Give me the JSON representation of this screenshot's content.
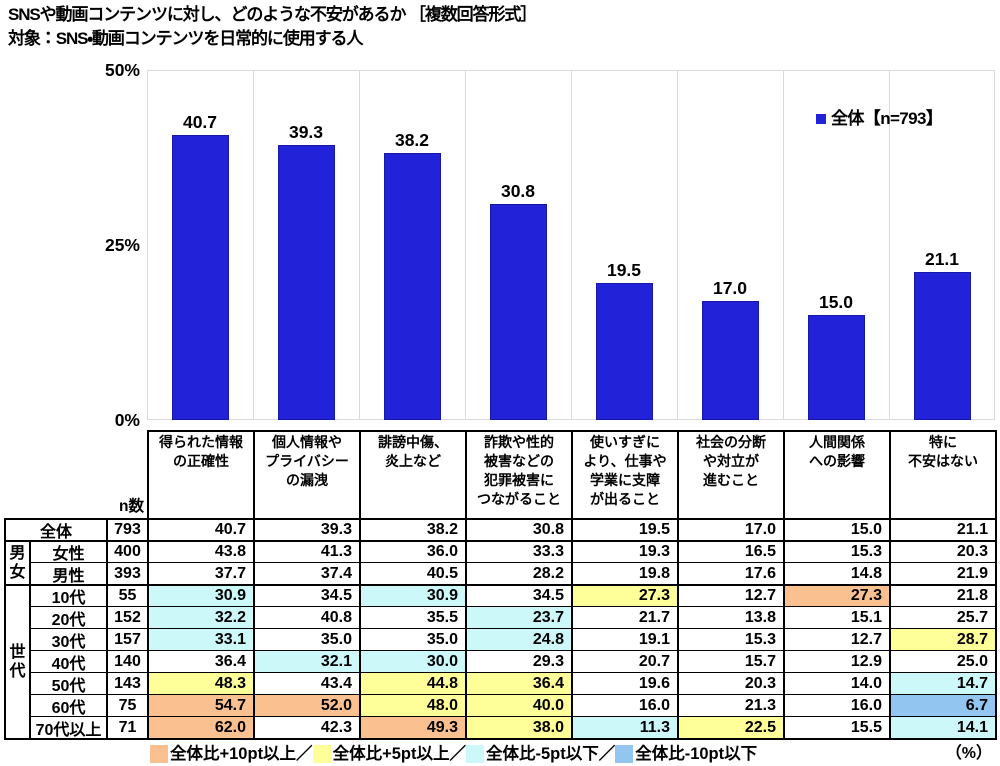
{
  "title": "SNSや動画コンテンツに対し、どのような不安があるか ［複数回答形式］",
  "subtitle": "対象：SNS・動画コンテンツを日常的に使用する人",
  "legend": {
    "label": "全体【n=793】",
    "color": "#2222D8"
  },
  "percent_note": "（%）",
  "n_header": "n数",
  "colors": {
    "bar": "#2222D8",
    "bar_border": "#1818A8",
    "gridline": "#DADADA",
    "highlight": {
      "o": "#FAC090",
      "y": "#FFFF99",
      "c": "#CDF8FA",
      "b": "#92C5F0"
    }
  },
  "chart_data": {
    "type": "bar",
    "title": "SNSや動画コンテンツに対し、どのような不安があるか ［複数回答形式］",
    "subtitle": "対象：SNS・動画コンテンツを日常的に使用する人",
    "legend_entries": [
      "全体【n=793】"
    ],
    "legend_position": "top-right",
    "ylim": [
      0,
      50
    ],
    "yticks": [
      {
        "value": 0,
        "label": "0%"
      },
      {
        "value": 25,
        "label": "25%"
      },
      {
        "value": 50,
        "label": "50%"
      }
    ],
    "grid": "vertical-category-separators",
    "categories": [
      {
        "label_lines": [
          "得られた情報",
          "の正確性"
        ],
        "value": 40.7,
        "display": "40.7"
      },
      {
        "label_lines": [
          "個人情報や",
          "プライバシー",
          "の漏洩"
        ],
        "value": 39.3,
        "display": "39.3"
      },
      {
        "label_lines": [
          "誹謗中傷、",
          "炎上など"
        ],
        "value": 38.2,
        "display": "38.2"
      },
      {
        "label_lines": [
          "詐欺や性的",
          "被害などの",
          "犯罪被害に",
          "つながること"
        ],
        "value": 30.8,
        "display": "30.8"
      },
      {
        "label_lines": [
          "使いすぎに",
          "より、仕事や",
          "学業に支障",
          "が出ること"
        ],
        "value": 19.5,
        "display": "19.5"
      },
      {
        "label_lines": [
          "社会の分断",
          "や対立が",
          "進むこと"
        ],
        "value": 17.0,
        "display": "17.0"
      },
      {
        "label_lines": [
          "人間関係",
          "への影響"
        ],
        "value": 15.0,
        "display": "15.0"
      },
      {
        "label_lines": [
          "特に",
          "不安はない"
        ],
        "value": 21.1,
        "display": "21.1"
      }
    ]
  },
  "table": {
    "groups": [
      {
        "label": "男女",
        "start": 1,
        "span": 2
      },
      {
        "label": "世代",
        "start": 3,
        "span": 7
      }
    ],
    "rows": [
      {
        "label": "全体",
        "n": "793",
        "values": [
          "40.7",
          "39.3",
          "38.2",
          "30.8",
          "19.5",
          "17.0",
          "15.0",
          "21.1"
        ],
        "hl": [
          "",
          "",
          "",
          "",
          "",
          "",
          "",
          ""
        ]
      },
      {
        "label": "女性",
        "n": "400",
        "values": [
          "43.8",
          "41.3",
          "36.0",
          "33.3",
          "19.3",
          "16.5",
          "15.3",
          "20.3"
        ],
        "hl": [
          "",
          "",
          "",
          "",
          "",
          "",
          "",
          ""
        ]
      },
      {
        "label": "男性",
        "n": "393",
        "values": [
          "37.7",
          "37.4",
          "40.5",
          "28.2",
          "19.8",
          "17.6",
          "14.8",
          "21.9"
        ],
        "hl": [
          "",
          "",
          "",
          "",
          "",
          "",
          "",
          ""
        ]
      },
      {
        "label": "10代",
        "n": "55",
        "values": [
          "30.9",
          "34.5",
          "30.9",
          "34.5",
          "27.3",
          "12.7",
          "27.3",
          "21.8"
        ],
        "hl": [
          "c",
          "",
          "c",
          "",
          "y",
          "",
          "o",
          ""
        ]
      },
      {
        "label": "20代",
        "n": "152",
        "values": [
          "32.2",
          "40.8",
          "35.5",
          "23.7",
          "21.7",
          "13.8",
          "15.1",
          "25.7"
        ],
        "hl": [
          "c",
          "",
          "",
          "c",
          "",
          "",
          "",
          ""
        ]
      },
      {
        "label": "30代",
        "n": "157",
        "values": [
          "33.1",
          "35.0",
          "35.0",
          "24.8",
          "19.1",
          "15.3",
          "12.7",
          "28.7"
        ],
        "hl": [
          "c",
          "",
          "",
          "c",
          "",
          "",
          "",
          "y"
        ]
      },
      {
        "label": "40代",
        "n": "140",
        "values": [
          "36.4",
          "32.1",
          "30.0",
          "29.3",
          "20.7",
          "15.7",
          "12.9",
          "25.0"
        ],
        "hl": [
          "",
          "c",
          "c",
          "",
          "",
          "",
          "",
          ""
        ]
      },
      {
        "label": "50代",
        "n": "143",
        "values": [
          "48.3",
          "43.4",
          "44.8",
          "36.4",
          "19.6",
          "20.3",
          "14.0",
          "14.7"
        ],
        "hl": [
          "y",
          "",
          "y",
          "y",
          "",
          "",
          "",
          "c"
        ]
      },
      {
        "label": "60代",
        "n": "75",
        "values": [
          "54.7",
          "52.0",
          "48.0",
          "40.0",
          "16.0",
          "21.3",
          "16.0",
          "6.7"
        ],
        "hl": [
          "o",
          "o",
          "y",
          "y",
          "",
          "",
          "",
          "b"
        ]
      },
      {
        "label": "70代以上",
        "n": "71",
        "values": [
          "62.0",
          "42.3",
          "49.3",
          "38.0",
          "11.3",
          "22.5",
          "15.5",
          "14.1"
        ],
        "hl": [
          "o",
          "",
          "o",
          "y",
          "c",
          "y",
          "",
          "c"
        ]
      }
    ]
  },
  "footer_legend": [
    {
      "key": "o",
      "label": "全体比+10pt以上／"
    },
    {
      "key": "y",
      "label": "全体比+5pt以上／"
    },
    {
      "key": "c",
      "label": "全体比-5pt以下／"
    },
    {
      "key": "b",
      "label": "全体比-10pt以下"
    }
  ]
}
